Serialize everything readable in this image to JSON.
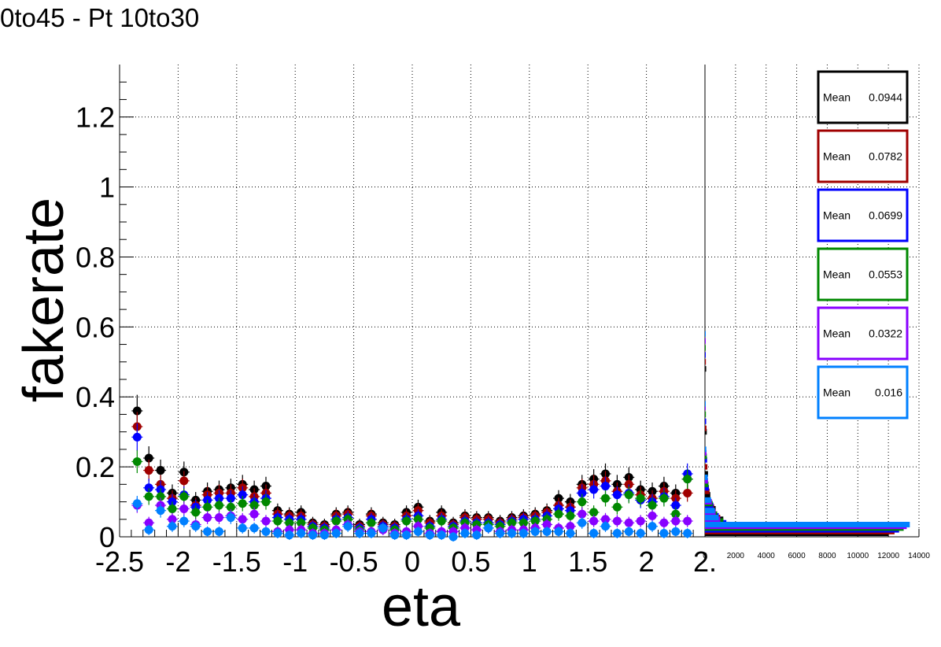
{
  "title": "0to45 - Pt 10to30",
  "chart_data": [
    {
      "type": "scatter",
      "xlabel": "eta",
      "ylabel": "fakerate",
      "xlim": [
        -2.5,
        2.5
      ],
      "ylim": [
        0,
        1.35
      ],
      "grid": true,
      "x_ticks": [
        -2.5,
        -2,
        -1.5,
        -1,
        -0.5,
        0,
        0.5,
        1,
        1.5,
        2,
        2.5
      ],
      "x_tick_labels": [
        "-2.5",
        "-2",
        "-1.5",
        "-1",
        "-0.5",
        "0",
        "0.5",
        "1",
        "1.5",
        "2",
        "2."
      ],
      "y_ticks": [
        0,
        0.2,
        0.4,
        0.6,
        0.8,
        1,
        1.2
      ],
      "y_tick_labels": [
        "0",
        "0.2",
        "0.4",
        "0.6",
        "0.8",
        "1",
        "1.2"
      ],
      "x": [
        -2.35,
        -2.25,
        -2.15,
        -2.05,
        -1.95,
        -1.85,
        -1.75,
        -1.65,
        -1.55,
        -1.45,
        -1.35,
        -1.25,
        -1.15,
        -1.05,
        -0.95,
        -0.85,
        -0.75,
        -0.65,
        -0.55,
        -0.45,
        -0.35,
        -0.25,
        -0.15,
        -0.05,
        0.05,
        0.15,
        0.25,
        0.35,
        0.45,
        0.55,
        0.65,
        0.75,
        0.85,
        0.95,
        1.05,
        1.15,
        1.25,
        1.35,
        1.45,
        1.55,
        1.65,
        1.75,
        1.85,
        1.95,
        2.05,
        2.15,
        2.25,
        2.35
      ],
      "series": [
        {
          "color": "#000000",
          "values": [
            0.36,
            0.225,
            0.19,
            0.125,
            0.185,
            0.105,
            0.13,
            0.135,
            0.14,
            0.15,
            0.135,
            0.145,
            0.075,
            0.065,
            0.07,
            0.04,
            0.035,
            0.065,
            0.07,
            0.035,
            0.065,
            0.04,
            0.035,
            0.07,
            0.085,
            0.045,
            0.07,
            0.04,
            0.06,
            0.055,
            0.055,
            0.045,
            0.055,
            0.06,
            0.065,
            0.075,
            0.11,
            0.1,
            0.15,
            0.165,
            0.18,
            0.15,
            0.17,
            0.135,
            0.13,
            0.145,
            0.125,
            0.165
          ]
        },
        {
          "color": "#a00000",
          "values": [
            0.315,
            0.19,
            0.15,
            0.11,
            0.16,
            0.09,
            0.12,
            0.125,
            0.125,
            0.14,
            0.115,
            0.125,
            0.065,
            0.06,
            0.06,
            0.035,
            0.03,
            0.06,
            0.065,
            0.03,
            0.06,
            0.035,
            0.03,
            0.06,
            0.075,
            0.04,
            0.06,
            0.035,
            0.055,
            0.05,
            0.05,
            0.04,
            0.05,
            0.055,
            0.06,
            0.07,
            0.09,
            0.085,
            0.14,
            0.15,
            0.16,
            0.13,
            0.15,
            0.12,
            0.11,
            0.13,
            0.11,
            0.125
          ]
        },
        {
          "color": "#0000ff",
          "values": [
            0.285,
            0.14,
            0.135,
            0.1,
            0.12,
            0.085,
            0.105,
            0.11,
            0.11,
            0.12,
            0.1,
            0.11,
            0.055,
            0.05,
            0.05,
            0.03,
            0.025,
            0.05,
            0.055,
            0.025,
            0.05,
            0.03,
            0.025,
            0.05,
            0.06,
            0.03,
            0.05,
            0.03,
            0.045,
            0.04,
            0.04,
            0.035,
            0.045,
            0.05,
            0.05,
            0.06,
            0.08,
            0.075,
            0.125,
            0.135,
            0.145,
            0.12,
            0.125,
            0.105,
            0.1,
            0.115,
            0.09,
            0.18
          ]
        },
        {
          "color": "#008800",
          "values": [
            0.215,
            0.115,
            0.115,
            0.08,
            0.115,
            0.07,
            0.085,
            0.09,
            0.085,
            0.095,
            0.09,
            0.1,
            0.045,
            0.04,
            0.04,
            0.025,
            0.02,
            0.045,
            0.05,
            0.02,
            0.04,
            0.025,
            0.02,
            0.045,
            0.05,
            0.025,
            0.045,
            0.025,
            0.04,
            0.035,
            0.035,
            0.03,
            0.04,
            0.04,
            0.045,
            0.05,
            0.065,
            0.06,
            0.1,
            0.07,
            0.11,
            0.085,
            0.12,
            0.11,
            0.09,
            0.11,
            0.065,
            0.165
          ]
        },
        {
          "color": "#8800ff",
          "values": [
            0.09,
            0.04,
            0.09,
            0.05,
            0.08,
            0.035,
            0.055,
            0.055,
            0.06,
            0.05,
            0.065,
            0.045,
            0.015,
            0.02,
            0.02,
            0.01,
            0.01,
            0.02,
            0.035,
            0.015,
            0.015,
            0.02,
            0.01,
            0.015,
            0.03,
            0.01,
            0.015,
            0.015,
            0.025,
            0.02,
            0.025,
            0.015,
            0.02,
            0.02,
            0.025,
            0.035,
            0.025,
            0.03,
            0.065,
            0.045,
            0.05,
            0.045,
            0.04,
            0.045,
            0.06,
            0.04,
            0.045,
            0.045
          ]
        },
        {
          "color": "#0080ff",
          "values": [
            0.095,
            0.02,
            0.075,
            0.03,
            0.045,
            0.03,
            0.015,
            0.015,
            0.055,
            0.025,
            0.025,
            0.015,
            0.01,
            0.005,
            0.01,
            0.005,
            0.005,
            0.01,
            0.03,
            0.01,
            0.01,
            0.025,
            0.005,
            0.005,
            0.015,
            0.005,
            0.005,
            0.0,
            0.01,
            0.005,
            0.025,
            0.01,
            0.01,
            0.01,
            0.015,
            0.015,
            0.015,
            0.01,
            0.04,
            0.01,
            0.03,
            0.01,
            0.015,
            0.01,
            0.03,
            0.01,
            0.015,
            0.01
          ]
        }
      ]
    },
    {
      "type": "bar",
      "orientation": "horizontal",
      "xlim": [
        0,
        14000
      ],
      "x_ticks": [
        0,
        2000,
        4000,
        6000,
        8000,
        10000,
        12000,
        14000
      ],
      "x_tick_labels": [
        "0",
        "2000",
        "4000",
        "6000",
        "8000",
        "10000",
        "12000",
        "14000"
      ],
      "series": [
        {
          "color": "#000000",
          "mean_label": "Mean",
          "mean_value": "0.0944",
          "bins": [
            {
              "y": 0.01,
              "count": 12000
            },
            {
              "y": 0.03,
              "count": 1900
            },
            {
              "y": 0.05,
              "count": 1200
            },
            {
              "y": 0.08,
              "count": 700
            },
            {
              "y": 0.12,
              "count": 350
            },
            {
              "y": 0.18,
              "count": 200
            },
            {
              "y": 0.3,
              "count": 120
            },
            {
              "y": 0.48,
              "count": 80
            }
          ]
        },
        {
          "color": "#a00000",
          "mean_label": "Mean",
          "mean_value": "0.0782",
          "bins": [
            {
              "y": 0.015,
              "count": 12400
            },
            {
              "y": 0.035,
              "count": 1600
            },
            {
              "y": 0.055,
              "count": 1000
            },
            {
              "y": 0.085,
              "count": 600
            },
            {
              "y": 0.13,
              "count": 300
            },
            {
              "y": 0.2,
              "count": 160
            },
            {
              "y": 0.31,
              "count": 100
            },
            {
              "y": 0.5,
              "count": 60
            }
          ]
        },
        {
          "color": "#0000ff",
          "mean_label": "Mean",
          "mean_value": "0.0699",
          "bins": [
            {
              "y": 0.02,
              "count": 12700
            },
            {
              "y": 0.04,
              "count": 1400
            },
            {
              "y": 0.06,
              "count": 900
            },
            {
              "y": 0.09,
              "count": 550
            },
            {
              "y": 0.14,
              "count": 260
            },
            {
              "y": 0.22,
              "count": 140
            },
            {
              "y": 0.33,
              "count": 80
            },
            {
              "y": 0.52,
              "count": 50
            }
          ]
        },
        {
          "color": "#008800",
          "mean_label": "Mean",
          "mean_value": "0.0553",
          "bins": [
            {
              "y": 0.025,
              "count": 13000
            },
            {
              "y": 0.045,
              "count": 1200
            },
            {
              "y": 0.065,
              "count": 800
            },
            {
              "y": 0.095,
              "count": 500
            },
            {
              "y": 0.15,
              "count": 230
            },
            {
              "y": 0.23,
              "count": 120
            },
            {
              "y": 0.35,
              "count": 60
            },
            {
              "y": 0.54,
              "count": 40
            }
          ]
        },
        {
          "color": "#8800ff",
          "mean_label": "Mean",
          "mean_value": "0.0322",
          "bins": [
            {
              "y": 0.03,
              "count": 13200
            },
            {
              "y": 0.05,
              "count": 1000
            },
            {
              "y": 0.07,
              "count": 700
            },
            {
              "y": 0.1,
              "count": 450
            },
            {
              "y": 0.16,
              "count": 200
            },
            {
              "y": 0.24,
              "count": 100
            },
            {
              "y": 0.37,
              "count": 50
            },
            {
              "y": 0.56,
              "count": 30
            }
          ]
        },
        {
          "color": "#0080ff",
          "mean_label": "Mean",
          "mean_value": "0.016",
          "bins": [
            {
              "y": 0.035,
              "count": 13400
            },
            {
              "y": 0.055,
              "count": 900
            },
            {
              "y": 0.075,
              "count": 650
            },
            {
              "y": 0.105,
              "count": 400
            },
            {
              "y": 0.17,
              "count": 180
            },
            {
              "y": 0.25,
              "count": 90
            },
            {
              "y": 0.38,
              "count": 40
            },
            {
              "y": 0.58,
              "count": 20
            }
          ]
        }
      ]
    }
  ]
}
